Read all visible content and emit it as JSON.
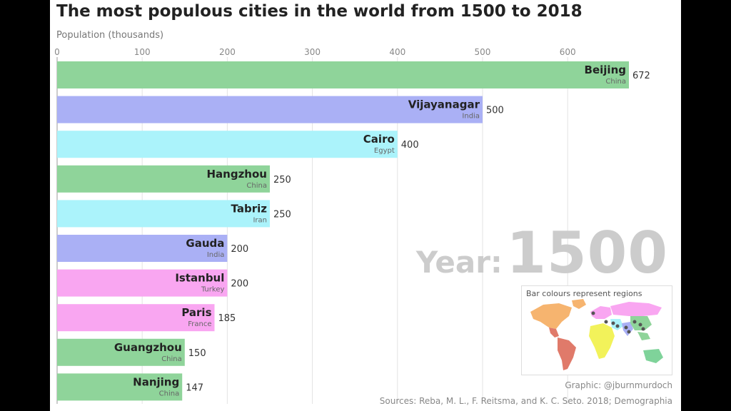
{
  "title": "The most populous cities in the world from 1500 to 2018",
  "year_label": "Year:",
  "year_value": "1500",
  "legend_title": "Bar colours represent regions",
  "credit": "Graphic: @jburnmurdoch",
  "sources": "Sources: Reba, M. L., F. Reitsma, and K. C. Seto. 2018; Demographia",
  "colors": {
    "east_asia": "#8fd49a",
    "south_asia": "#aab0f5",
    "middle_east": "#abf3fb",
    "europe": "#f9a6f1",
    "americas": "#f6b46f",
    "latin_america": "#e07a6a",
    "africa": "#f2f25a",
    "oceania": "#7fd39a"
  },
  "chart_data": {
    "type": "bar",
    "orientation": "horizontal",
    "ylabel": "Population (thousands)",
    "xlim": [
      0,
      672
    ],
    "ticks": [
      0,
      100,
      200,
      300,
      400,
      500,
      600
    ],
    "grid": true,
    "categories": [
      "Beijing",
      "Vijayanagar",
      "Cairo",
      "Hangzhou",
      "Tabriz",
      "Gauda",
      "Istanbul",
      "Paris",
      "Guangzhou",
      "Nanjing"
    ],
    "countries": [
      "China",
      "India",
      "Egypt",
      "China",
      "Iran",
      "India",
      "Turkey",
      "France",
      "China",
      "China"
    ],
    "regions": [
      "east_asia",
      "south_asia",
      "middle_east",
      "east_asia",
      "middle_east",
      "south_asia",
      "europe",
      "europe",
      "east_asia",
      "east_asia"
    ],
    "values": [
      672,
      500,
      400,
      250,
      250,
      200,
      200,
      185,
      150,
      147
    ]
  }
}
